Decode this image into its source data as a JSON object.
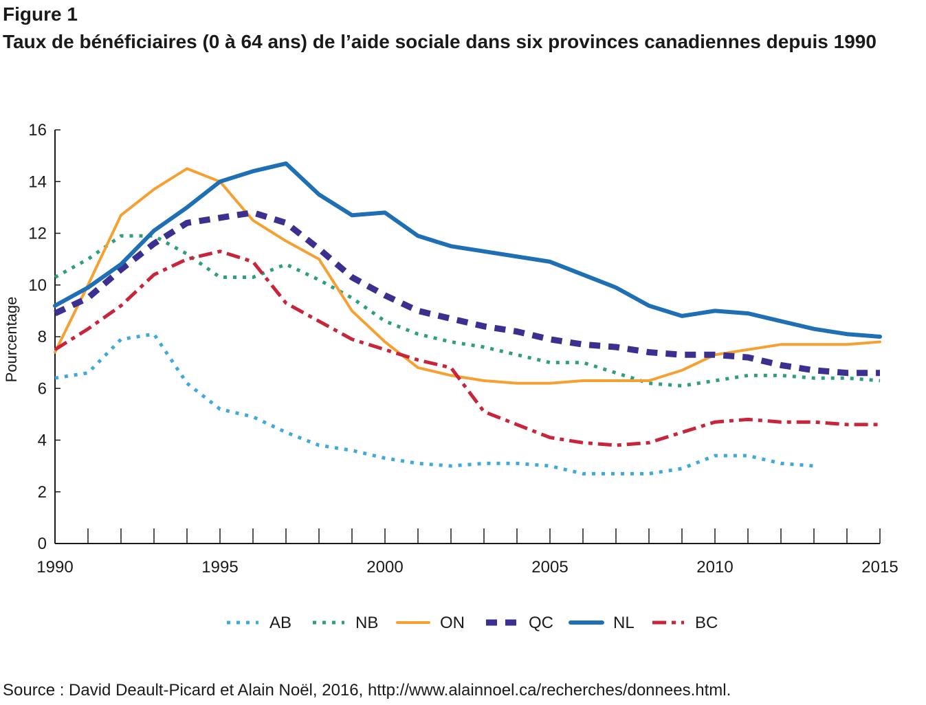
{
  "figure": {
    "label": "Figure 1",
    "title": "Taux de bénéficiaires (0 à 64 ans) de l’aide sociale dans six provinces canadiennes depuis 1990"
  },
  "source": "Source : David Deault-Picard et Alain Noël, 2016, http://www.alainnoel.ca/recherches/donnees.html.",
  "chart_data": {
    "type": "line",
    "title": "Taux de bénéficiaires (0 à 64 ans) de l’aide sociale dans six provinces canadiennes depuis 1990",
    "xlabel": "",
    "ylabel": "Pourcentage",
    "xlim": [
      1990,
      2015
    ],
    "ylim": [
      0,
      16
    ],
    "x_ticks": [
      1990,
      1995,
      2000,
      2005,
      2010,
      2015
    ],
    "y_ticks": [
      0,
      2,
      4,
      6,
      8,
      10,
      12,
      14,
      16
    ],
    "grid": false,
    "legend_position": "bottom",
    "x": [
      1990,
      1991,
      1992,
      1993,
      1994,
      1995,
      1996,
      1997,
      1998,
      1999,
      2000,
      2001,
      2002,
      2003,
      2004,
      2005,
      2006,
      2007,
      2008,
      2009,
      2010,
      2011,
      2012,
      2013,
      2014,
      2015
    ],
    "series": [
      {
        "name": "AB",
        "color": "#3fa9dc",
        "style": "dotted",
        "values": [
          6.4,
          6.6,
          7.9,
          8.1,
          6.2,
          5.2,
          4.9,
          4.3,
          3.8,
          3.6,
          3.3,
          3.1,
          3.0,
          3.1,
          3.1,
          3.0,
          2.7,
          2.7,
          2.7,
          2.9,
          3.4,
          3.4,
          3.1,
          3.0,
          null,
          null
        ]
      },
      {
        "name": "NB",
        "color": "#2e9e7f",
        "style": "dotted",
        "values": [
          10.3,
          11.0,
          11.9,
          11.9,
          11.2,
          10.3,
          10.3,
          10.8,
          10.2,
          9.5,
          8.6,
          8.1,
          7.8,
          7.6,
          7.3,
          7.0,
          7.0,
          6.6,
          6.2,
          6.1,
          6.3,
          6.5,
          6.5,
          6.4,
          6.4,
          6.3
        ]
      },
      {
        "name": "ON",
        "color": "#f6a031",
        "style": "solid",
        "values": [
          7.4,
          10.0,
          12.7,
          13.7,
          14.5,
          14.0,
          12.5,
          11.7,
          11.0,
          9.0,
          7.8,
          6.8,
          6.5,
          6.3,
          6.2,
          6.2,
          6.3,
          6.3,
          6.3,
          6.7,
          7.3,
          7.5,
          7.7,
          7.7,
          7.7,
          7.8
        ]
      },
      {
        "name": "QC",
        "color": "#3b2f8f",
        "style": "dashed",
        "values": [
          8.9,
          9.5,
          10.6,
          11.6,
          12.4,
          12.6,
          12.8,
          12.4,
          11.4,
          10.3,
          9.6,
          9.0,
          8.7,
          8.4,
          8.2,
          7.9,
          7.7,
          7.6,
          7.4,
          7.3,
          7.3,
          7.2,
          6.9,
          6.7,
          6.6,
          6.6
        ]
      },
      {
        "name": "NL",
        "color": "#1f6fb5",
        "style": "solid-thick",
        "values": [
          9.2,
          9.9,
          10.8,
          12.1,
          13.0,
          14.0,
          14.4,
          14.7,
          13.5,
          12.7,
          12.8,
          11.9,
          11.5,
          11.3,
          11.1,
          10.9,
          10.4,
          9.9,
          9.2,
          8.8,
          9.0,
          8.9,
          8.6,
          8.3,
          8.1,
          8.0
        ]
      },
      {
        "name": "BC",
        "color": "#c8243a",
        "style": "dashdot",
        "values": [
          7.5,
          8.3,
          9.2,
          10.4,
          11.0,
          11.3,
          10.9,
          9.3,
          8.6,
          7.9,
          7.5,
          7.1,
          6.8,
          5.1,
          4.6,
          4.1,
          3.9,
          3.8,
          3.9,
          4.3,
          4.7,
          4.8,
          4.7,
          4.7,
          4.6,
          4.6
        ]
      }
    ]
  }
}
